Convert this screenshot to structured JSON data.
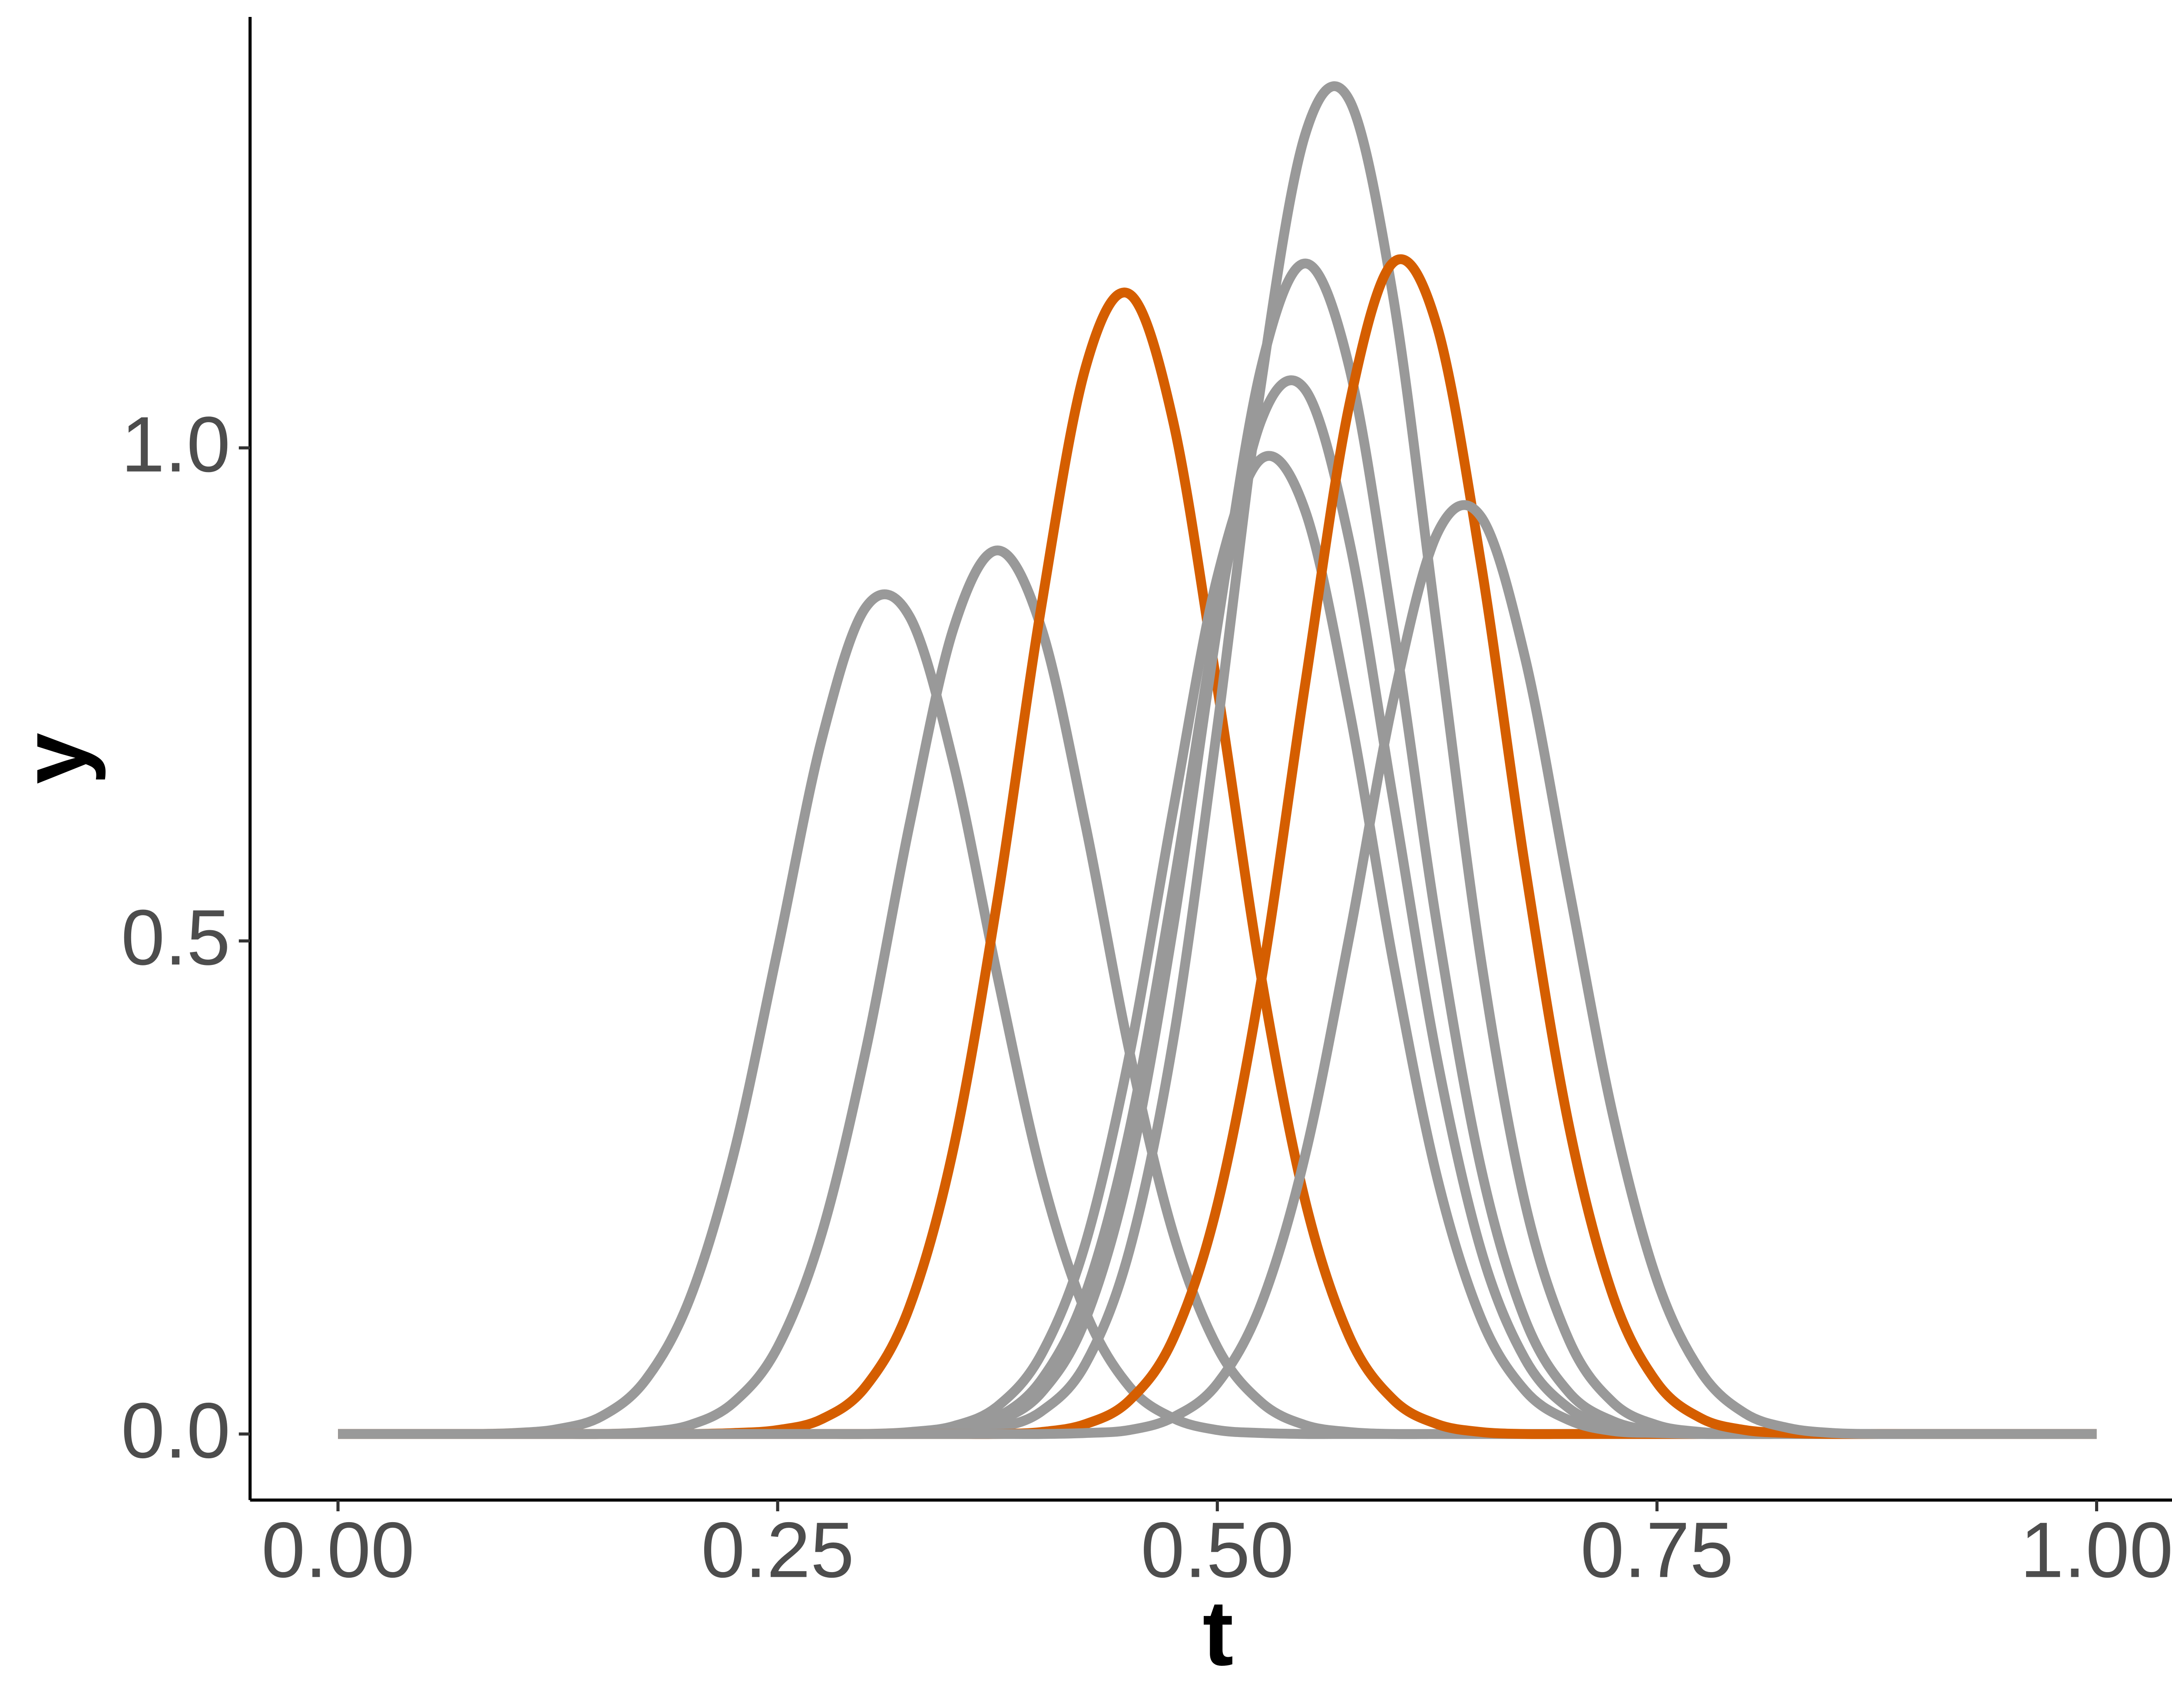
{
  "chart_data": {
    "type": "line",
    "x_label": "t",
    "y_label": "y",
    "x": [
      0,
      0.025,
      0.05,
      0.075,
      0.1,
      0.125,
      0.15,
      0.175,
      0.2,
      0.225,
      0.25,
      0.275,
      0.3,
      0.325,
      0.35,
      0.375,
      0.4,
      0.425,
      0.45,
      0.475,
      0.5,
      0.525,
      0.55,
      0.575,
      0.6,
      0.625,
      0.65,
      0.675,
      0.7,
      0.725,
      0.75,
      0.775,
      0.8,
      0.825,
      0.85,
      0.875,
      0.9,
      0.925,
      0.95,
      0.975,
      1
    ],
    "series": [
      {
        "color": "#999999",
        "values": [
          0,
          0,
          0,
          0,
          0.001,
          0.005,
          0.018,
          0.055,
          0.137,
          0.284,
          0.491,
          0.704,
          0.838,
          0.829,
          0.68,
          0.464,
          0.263,
          0.124,
          0.048,
          0.016,
          0.004,
          0.001,
          0,
          0,
          0,
          0,
          0,
          0,
          0,
          0,
          0,
          0,
          0,
          0,
          0,
          0,
          0,
          0,
          0,
          0,
          0
        ]
      },
      {
        "color": "#999999",
        "values": [
          0,
          0,
          0,
          0,
          0,
          0,
          0,
          0.002,
          0.009,
          0.032,
          0.088,
          0.203,
          0.388,
          0.618,
          0.817,
          0.896,
          0.817,
          0.618,
          0.388,
          0.203,
          0.088,
          0.032,
          0.009,
          0.002,
          0,
          0,
          0,
          0,
          0,
          0,
          0,
          0,
          0,
          0,
          0,
          0,
          0,
          0,
          0,
          0,
          0
        ]
      },
      {
        "color": "#d55e00",
        "values": [
          0,
          0,
          0,
          0,
          0,
          0,
          0,
          0,
          0,
          0.001,
          0.004,
          0.015,
          0.048,
          0.129,
          0.29,
          0.542,
          0.84,
          1.081,
          1.156,
          1.026,
          0.757,
          0.463,
          0.236,
          0.099,
          0.035,
          0.01,
          0.002,
          0,
          0,
          0,
          0,
          0,
          0,
          0,
          0,
          0,
          0,
          0,
          0,
          0,
          0
        ]
      },
      {
        "color": "#999999",
        "values": [
          0,
          0,
          0,
          0,
          0,
          0,
          0,
          0,
          0,
          0,
          0,
          0,
          0,
          0,
          0.001,
          0.006,
          0.023,
          0.071,
          0.186,
          0.4,
          0.717,
          1.066,
          1.318,
          1.353,
          1.153,
          0.816,
          0.48,
          0.234,
          0.095,
          0.032,
          0.009,
          0.002,
          0,
          0,
          0,
          0,
          0,
          0,
          0,
          0,
          0
        ]
      },
      {
        "color": "#999999",
        "values": [
          0,
          0,
          0,
          0,
          0,
          0,
          0,
          0,
          0,
          0,
          0,
          0,
          0,
          0.001,
          0.003,
          0.013,
          0.042,
          0.116,
          0.269,
          0.515,
          0.819,
          1.082,
          1.187,
          1.082,
          0.819,
          0.515,
          0.269,
          0.116,
          0.042,
          0.013,
          0.003,
          0.001,
          0,
          0,
          0,
          0,
          0,
          0,
          0,
          0,
          0
        ]
      },
      {
        "color": "#999999",
        "values": [
          0,
          0,
          0,
          0,
          0,
          0,
          0,
          0,
          0,
          0,
          0,
          0,
          0,
          0.001,
          0.005,
          0.017,
          0.055,
          0.142,
          0.308,
          0.555,
          0.828,
          1.028,
          1.059,
          0.906,
          0.643,
          0.38,
          0.186,
          0.076,
          0.026,
          0.007,
          0.002,
          0,
          0,
          0,
          0,
          0,
          0,
          0,
          0,
          0,
          0
        ]
      },
      {
        "color": "#999999",
        "values": [
          0,
          0,
          0,
          0,
          0,
          0,
          0,
          0,
          0,
          0,
          0,
          0,
          0,
          0.002,
          0.008,
          0.028,
          0.081,
          0.193,
          0.384,
          0.634,
          0.869,
          0.989,
          0.936,
          0.735,
          0.479,
          0.26,
          0.117,
          0.044,
          0.014,
          0.003,
          0.001,
          0,
          0,
          0,
          0,
          0,
          0,
          0,
          0,
          0,
          0
        ]
      },
      {
        "color": "#d55e00",
        "values": [
          0,
          0,
          0,
          0,
          0,
          0,
          0,
          0,
          0,
          0,
          0,
          0,
          0,
          0,
          0,
          0,
          0.002,
          0.01,
          0.034,
          0.097,
          0.232,
          0.46,
          0.761,
          1.043,
          1.188,
          1.123,
          0.882,
          0.575,
          0.312,
          0.14,
          0.052,
          0.016,
          0.004,
          0.001,
          0,
          0,
          0,
          0,
          0,
          0,
          0
        ]
      },
      {
        "color": "#999999",
        "values": [
          0,
          0,
          0,
          0,
          0,
          0,
          0,
          0,
          0,
          0,
          0,
          0,
          0,
          0,
          0,
          0,
          0,
          0.001,
          0.004,
          0.017,
          0.051,
          0.132,
          0.283,
          0.504,
          0.744,
          0.913,
          0.93,
          0.787,
          0.553,
          0.323,
          0.156,
          0.063,
          0.021,
          0.006,
          0.001,
          0,
          0,
          0,
          0,
          0,
          0
        ]
      }
    ],
    "xlim": [
      -0.05,
      1.05
    ],
    "ylim": [
      -0.067,
      1.437
    ],
    "xticks": [
      {
        "value": 0,
        "label": "0.00"
      },
      {
        "value": 0.25,
        "label": "0.25"
      },
      {
        "value": 0.5,
        "label": "0.50"
      },
      {
        "value": 0.75,
        "label": "0.75"
      },
      {
        "value": 1,
        "label": "1.00"
      }
    ],
    "yticks": [
      {
        "value": 0,
        "label": "0.0"
      },
      {
        "value": 0.5,
        "label": "0.5"
      },
      {
        "value": 1,
        "label": "1.0"
      }
    ],
    "grid": false
  }
}
